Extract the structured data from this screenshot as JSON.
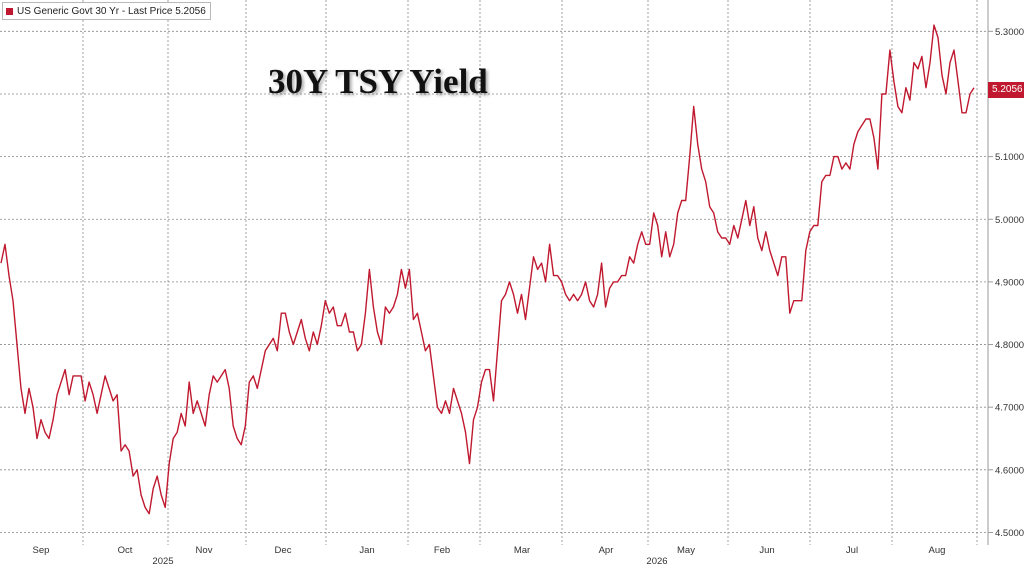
{
  "legend": {
    "text": "US Generic Govt 30 Yr - Last Price 5.2056"
  },
  "title": "30Y TSY Yield",
  "colors": {
    "series": "#c0192f",
    "grid": "#8a8a8a",
    "axis": "#9a9a9a",
    "text": "#333333"
  },
  "last_price_label": "5.2056",
  "chart_data": {
    "type": "line",
    "title": "30Y TSY Yield",
    "xlabel": "",
    "ylabel": "",
    "ylim": [
      4.48,
      5.35
    ],
    "yticks": [
      "4.5000",
      "4.6000",
      "4.7000",
      "4.8000",
      "4.9000",
      "5.0000",
      "5.1000",
      "5.2000",
      "5.3000"
    ],
    "month_labels": [
      "Sep",
      "Oct",
      "Nov",
      "Dec",
      "Jan",
      "Feb",
      "Mar",
      "Apr",
      "May",
      "Jun",
      "Jul",
      "Aug"
    ],
    "year_labels": [
      "2025",
      "2026"
    ],
    "grid": true,
    "legend_position": "top-left",
    "series": [
      {
        "name": "US Generic Govt 30 Yr",
        "last_value": 5.2056,
        "values": [
          4.93,
          4.96,
          4.91,
          4.87,
          4.8,
          4.73,
          4.69,
          4.73,
          4.7,
          4.65,
          4.68,
          4.66,
          4.65,
          4.68,
          4.72,
          4.74,
          4.76,
          4.72,
          4.75,
          4.75,
          4.75,
          4.71,
          4.74,
          4.72,
          4.69,
          4.72,
          4.75,
          4.73,
          4.71,
          4.72,
          4.63,
          4.64,
          4.63,
          4.59,
          4.6,
          4.56,
          4.54,
          4.53,
          4.57,
          4.59,
          4.56,
          4.54,
          4.61,
          4.65,
          4.66,
          4.69,
          4.67,
          4.74,
          4.69,
          4.71,
          4.69,
          4.67,
          4.72,
          4.75,
          4.74,
          4.75,
          4.76,
          4.73,
          4.67,
          4.65,
          4.64,
          4.67,
          4.74,
          4.75,
          4.73,
          4.76,
          4.79,
          4.8,
          4.81,
          4.79,
          4.85,
          4.85,
          4.82,
          4.8,
          4.82,
          4.84,
          4.81,
          4.79,
          4.82,
          4.8,
          4.83,
          4.87,
          4.85,
          4.86,
          4.83,
          4.83,
          4.85,
          4.82,
          4.82,
          4.79,
          4.8,
          4.85,
          4.92,
          4.86,
          4.82,
          4.8,
          4.86,
          4.85,
          4.86,
          4.88,
          4.92,
          4.89,
          4.92,
          4.84,
          4.85,
          4.82,
          4.79,
          4.8,
          4.75,
          4.7,
          4.69,
          4.71,
          4.69,
          4.73,
          4.71,
          4.69,
          4.66,
          4.61,
          4.68,
          4.7,
          4.74,
          4.76,
          4.76,
          4.71,
          4.79,
          4.87,
          4.88,
          4.9,
          4.88,
          4.85,
          4.88,
          4.84,
          4.89,
          4.94,
          4.92,
          4.93,
          4.9,
          4.96,
          4.91,
          4.91,
          4.9,
          4.88,
          4.87,
          4.88,
          4.87,
          4.88,
          4.9,
          4.87,
          4.86,
          4.88,
          4.93,
          4.86,
          4.89,
          4.9,
          4.9,
          4.91,
          4.91,
          4.94,
          4.93,
          4.96,
          4.98,
          4.96,
          4.96,
          5.01,
          4.99,
          4.94,
          4.98,
          4.94,
          4.96,
          5.01,
          5.03,
          5.03,
          5.1,
          5.18,
          5.12,
          5.08,
          5.06,
          5.02,
          5.01,
          4.98,
          4.97,
          4.97,
          4.96,
          4.99,
          4.97,
          5.0,
          5.03,
          4.99,
          5.02,
          4.97,
          4.95,
          4.98,
          4.95,
          4.93,
          4.91,
          4.94,
          4.94,
          4.85,
          4.87,
          4.87,
          4.87,
          4.95,
          4.98,
          4.99,
          4.99,
          5.06,
          5.07,
          5.07,
          5.1,
          5.1,
          5.08,
          5.09,
          5.08,
          5.12,
          5.14,
          5.15,
          5.16,
          5.16,
          5.13,
          5.08,
          5.2,
          5.2,
          5.27,
          5.22,
          5.18,
          5.17,
          5.21,
          5.19,
          5.25,
          5.24,
          5.26,
          5.21,
          5.25,
          5.31,
          5.29,
          5.23,
          5.2,
          5.25,
          5.27,
          5.22,
          5.17,
          5.17,
          5.2,
          5.21
        ]
      }
    ]
  }
}
